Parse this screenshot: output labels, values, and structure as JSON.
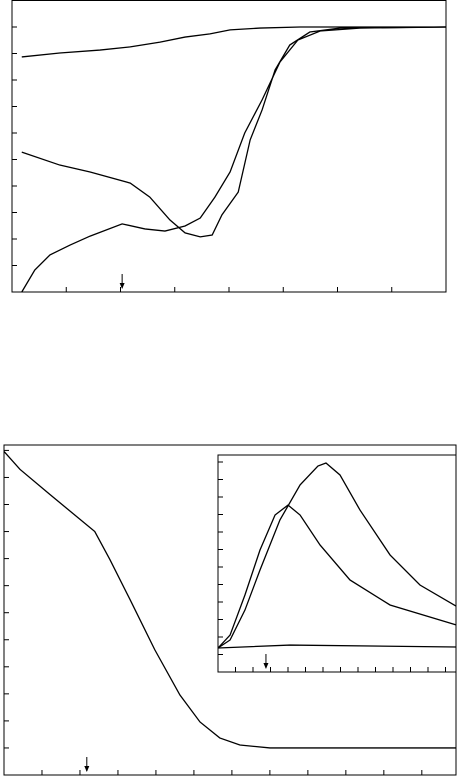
{
  "chart_data": [
    {
      "type": "line",
      "marker_x": 2.03,
      "xlim": [
        0,
        8
      ],
      "xticks": [
        1,
        2,
        3,
        4,
        5,
        6,
        7
      ],
      "ylim": [
        0,
        11
      ],
      "yticks": [
        1,
        2,
        3,
        4,
        5,
        6,
        7,
        8,
        9,
        10
      ],
      "series": [
        {
          "color": "#000000",
          "x": [
            0.18,
            0.88,
            1.62,
            2.18,
            2.73,
            3.19,
            3.65,
            4.02,
            4.57,
            5.31,
            8.0
          ],
          "values": [
            8.87,
            9.02,
            9.13,
            9.25,
            9.43,
            9.62,
            9.74,
            9.89,
            9.96,
            10.0,
            10.0
          ]
        },
        {
          "color": "#000000",
          "x": [
            0.18,
            0.88,
            1.44,
            2.18,
            2.54,
            2.91,
            3.19,
            3.47,
            3.69,
            3.87,
            4.17,
            4.39,
            4.61,
            4.85,
            5.12,
            5.49,
            6.05,
            8.0
          ],
          "values": [
            5.28,
            4.79,
            4.53,
            4.11,
            3.58,
            2.72,
            2.23,
            2.08,
            2.15,
            2.91,
            3.77,
            5.74,
            6.87,
            8.38,
            9.32,
            9.81,
            9.96,
            10.0
          ]
        },
        {
          "color": "#000000",
          "x": [
            0.18,
            0.42,
            0.7,
            1.07,
            1.44,
            2.03,
            2.45,
            2.82,
            3.19,
            3.47,
            3.74,
            4.02,
            4.29,
            4.61,
            4.94,
            5.27,
            5.68,
            6.41,
            8.0
          ],
          "values": [
            0,
            0.83,
            1.4,
            1.77,
            2.11,
            2.57,
            2.38,
            2.3,
            2.49,
            2.79,
            3.58,
            4.53,
            6.0,
            7.25,
            8.68,
            9.51,
            9.85,
            9.96,
            10.0
          ]
        }
      ]
    },
    {
      "type": "line",
      "marker_x": 2.18,
      "xlim": [
        0,
        11.9
      ],
      "xticks": [
        1,
        2,
        3,
        4,
        5,
        6,
        7,
        8,
        9,
        10,
        11
      ],
      "ylim": [
        0,
        12.2
      ],
      "yticks": [
        1,
        2,
        3,
        4,
        5,
        6,
        7,
        8,
        9,
        10,
        11,
        12
      ],
      "series": [
        {
          "color": "#000000",
          "x": [
            0,
            0.42,
            1.21,
            2.39,
            2.79,
            3.32,
            3.97,
            4.63,
            5.16,
            5.68,
            6.21,
            7.0,
            11.9
          ],
          "values": [
            11.96,
            11.3,
            10.37,
            9.0,
            7.96,
            6.48,
            4.63,
            2.96,
            1.96,
            1.37,
            1.11,
            1.0,
            1.0
          ]
        }
      ]
    },
    {
      "type": "line",
      "marker_x": 2.74,
      "xlim": [
        0,
        13.6
      ],
      "xticks": [
        1,
        2,
        3,
        4,
        5,
        6,
        7,
        8,
        9,
        10,
        11,
        12,
        13
      ],
      "ylim": [
        0,
        12.4
      ],
      "yticks": [
        1,
        2,
        3,
        4,
        5,
        6,
        7,
        8,
        9,
        10,
        11,
        12
      ],
      "series": [
        {
          "color": "#000000",
          "x": [
            0,
            0.69,
            1.54,
            2.4,
            3.54,
            4.69,
            5.71,
            6.17,
            6.97,
            8.11,
            9.83,
            11.54,
            13.6
          ],
          "values": [
            1.37,
            1.83,
            3.54,
            5.83,
            8.69,
            10.69,
            11.77,
            11.94,
            11.26,
            9.26,
            6.69,
            4.97,
            3.77
          ]
        },
        {
          "color": "#000000",
          "x": [
            0,
            0.69,
            1.54,
            2.4,
            3.26,
            4.0,
            4.69,
            5.83,
            7.54,
            9.83,
            13.6
          ],
          "values": [
            1.37,
            2.11,
            4.4,
            6.97,
            8.97,
            9.54,
            8.97,
            7.26,
            5.26,
            3.83,
            2.69
          ]
        },
        {
          "color": "#000000",
          "x": [
            0,
            4.11,
            13.6
          ],
          "values": [
            1.37,
            1.54,
            1.43
          ]
        }
      ]
    }
  ]
}
